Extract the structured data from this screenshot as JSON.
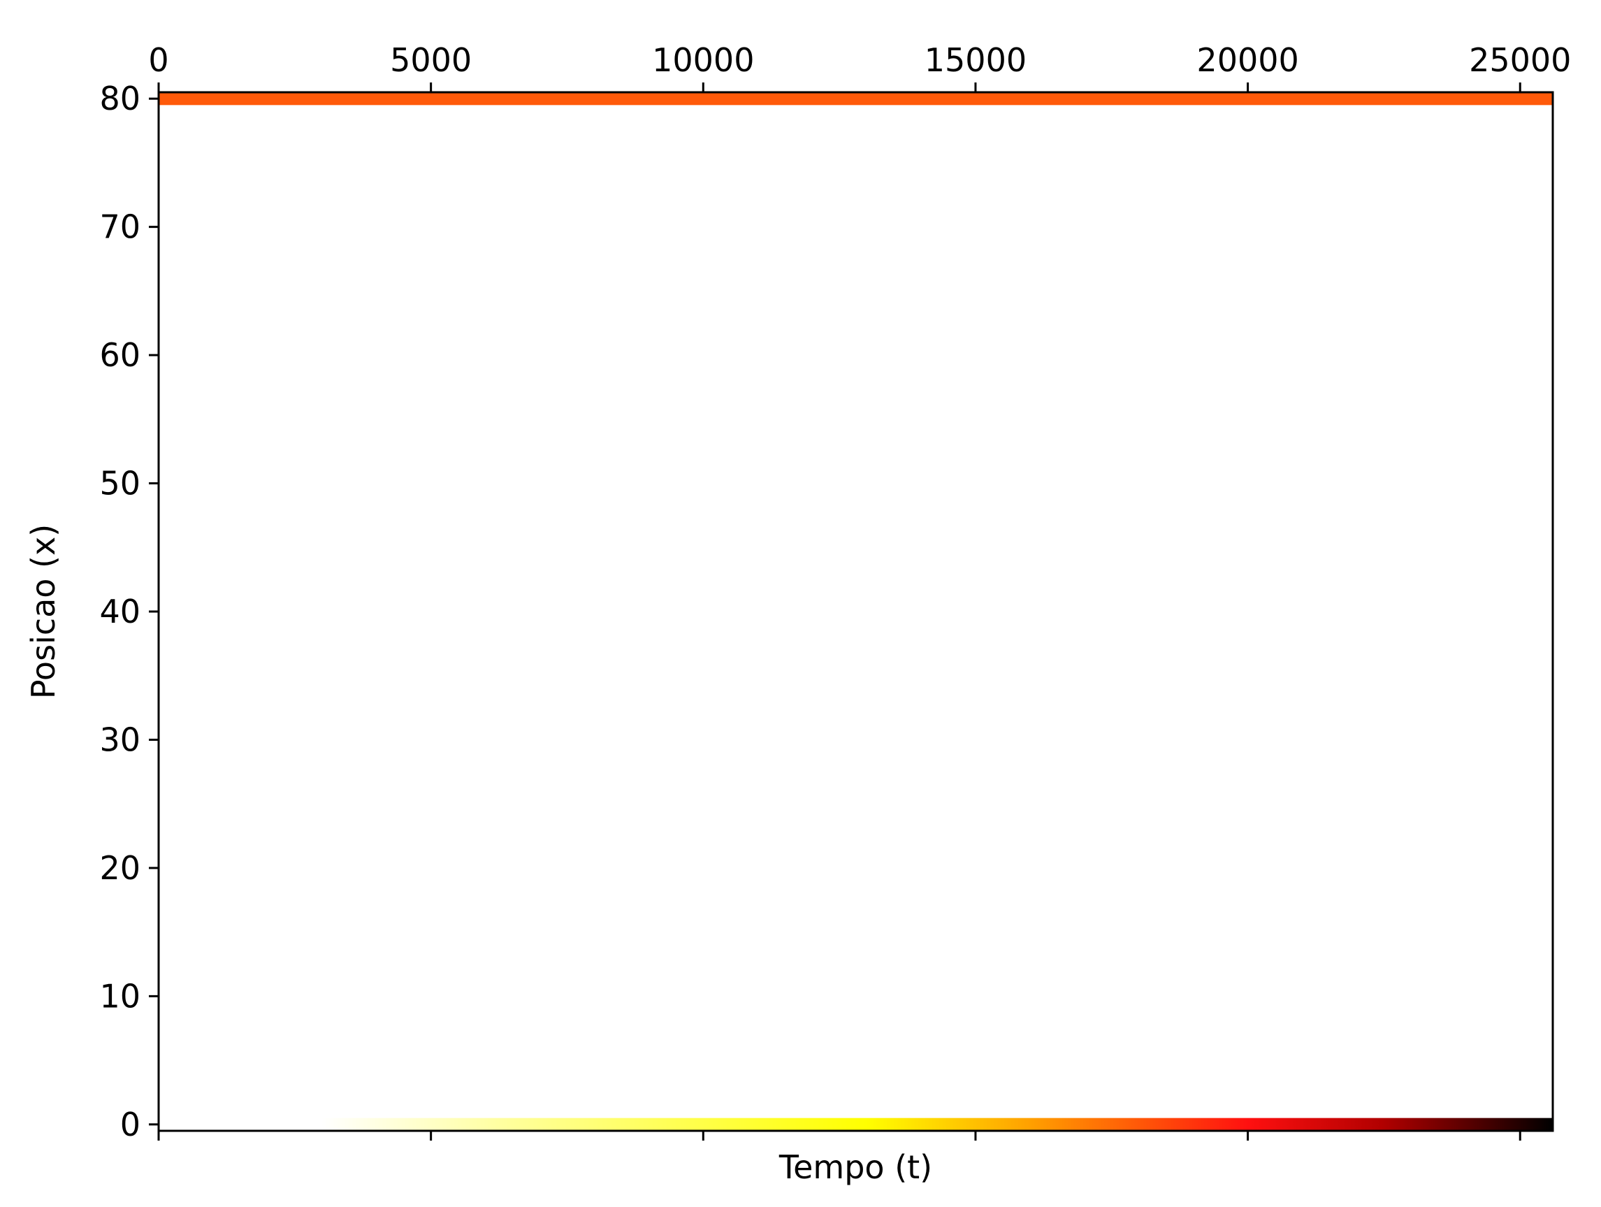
{
  "chart_data": {
    "type": "heatmap",
    "title": "",
    "xlabel": "Tempo (t)",
    "ylabel": "Posicao (x)",
    "xlim": [
      0,
      25600
    ],
    "ylim": [
      -0.5,
      80.5
    ],
    "x_ticks": [
      "0",
      "5000",
      "10000",
      "15000",
      "20000",
      "25000"
    ],
    "y_ticks": [
      "0",
      "10",
      "20",
      "30",
      "40",
      "50",
      "60",
      "70",
      "80"
    ],
    "x_tick_values": [
      0,
      5000,
      10000,
      15000,
      20000,
      25000
    ],
    "y_tick_values": [
      0,
      10,
      20,
      30,
      40,
      50,
      60,
      70,
      80
    ],
    "x_axis_position": "top and bottom",
    "grid": false,
    "colormap": "hot (reversed: white to yellow to red to black)",
    "colorbar": false,
    "rows": [
      {
        "x": 80,
        "constant_color": "#ff5a0a"
      },
      {
        "x": 0,
        "gradient": [
          {
            "t": 0,
            "color": "#ffffff"
          },
          {
            "t": 3000,
            "color": "#ffffff"
          },
          {
            "t": 6500,
            "color": "#ffff9a"
          },
          {
            "t": 13000,
            "color": "#ffff00"
          },
          {
            "t": 16000,
            "color": "#ffa000"
          },
          {
            "t": 20000,
            "color": "#ff1010"
          },
          {
            "t": 22500,
            "color": "#b00000"
          },
          {
            "t": 25600,
            "color": "#000000"
          }
        ]
      }
    ]
  }
}
